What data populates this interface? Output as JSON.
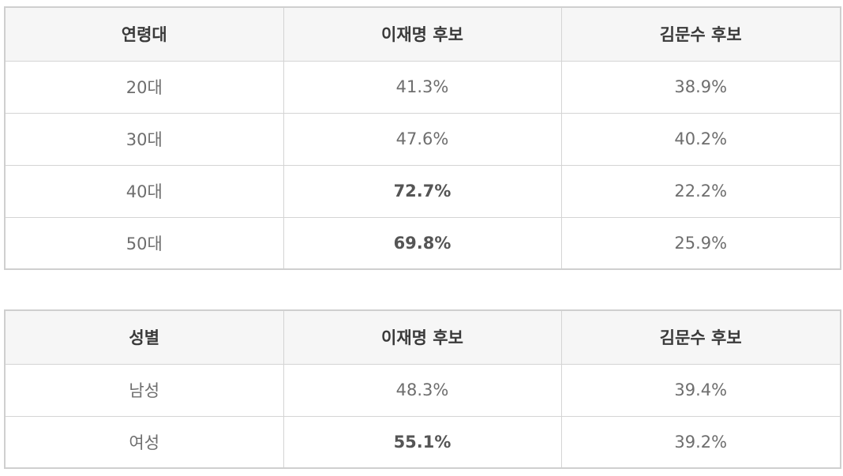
{
  "age_table": {
    "headers": [
      "연령대",
      "이재명 후보",
      "김문수 후보"
    ],
    "rows": [
      {
        "group": "20대",
        "lee": "41.3%",
        "kim": "38.9%",
        "lee_bold": false
      },
      {
        "group": "30대",
        "lee": "47.6%",
        "kim": "40.2%",
        "lee_bold": false
      },
      {
        "group": "40대",
        "lee": "72.7%",
        "kim": "22.2%",
        "lee_bold": true
      },
      {
        "group": "50대",
        "lee": "69.8%",
        "kim": "25.9%",
        "lee_bold": true
      }
    ]
  },
  "gender_table": {
    "headers": [
      "성별",
      "이재명 후보",
      "김문수 후보"
    ],
    "rows": [
      {
        "group": "남성",
        "lee": "48.3%",
        "kim": "39.4%",
        "lee_bold": false
      },
      {
        "group": "여성",
        "lee": "55.1%",
        "kim": "39.2%",
        "lee_bold": true
      }
    ]
  }
}
